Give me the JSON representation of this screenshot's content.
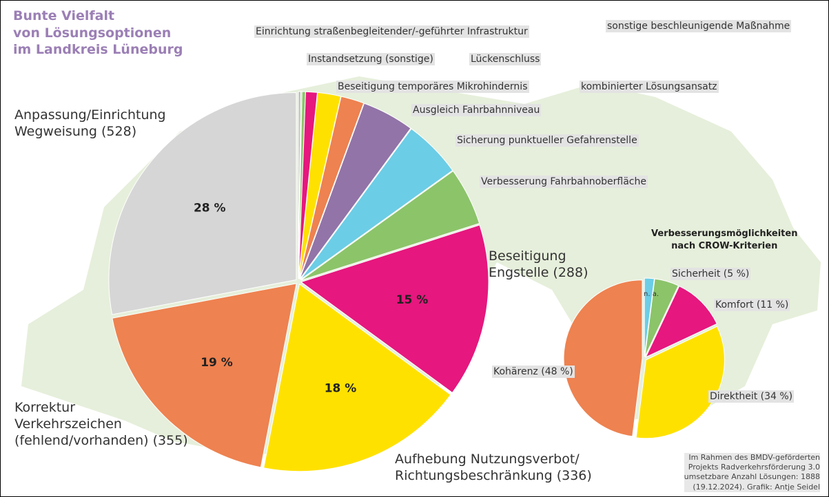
{
  "title": "Bunte Vielfalt\nvon Lösungsoptionen\nim Landkreis Lüneburg",
  "note": "Im Rahmen des BMDV-geförderten\nProjekts Radverkehrsförderung 3.0\numsetzbare Anzahl Lösungen: 1888\n(19.12.2024). Grafik: Antje Seidel",
  "chart_data": [
    {
      "type": "pie",
      "categories": [
        "sonstige beschleunigende Maßnahme",
        "kombinierter Lösungsansatz",
        "Einrichtung straßenbegleitender/-geführter Infrastruktur",
        "Lückenschluss",
        "Instandsetzung (sonstige)",
        "Beseitigung temporäres Mikrohindernis",
        "Ausgleich Fahrbahnniveau",
        "Sicherung punktueller Gefahrenstelle",
        "Verbesserung Fahrbahnoberfläche",
        "Beseitigung\nEngstelle (288)",
        "Aufhebung Nutzungsverbot/\nRichtungsbeschränkung (336)",
        "Korrektur\nVerkehrszeichen\n(fehlend/vorhanden) (355)",
        "Anpassung/Einrichtung\nWegweisung (528)"
      ],
      "values": [
        0.2,
        0.1,
        0.3,
        1,
        2,
        2,
        4.5,
        5,
        5,
        15,
        18,
        19,
        28
      ],
      "value_labels": [
        null,
        null,
        null,
        null,
        null,
        null,
        null,
        null,
        null,
        "15 %",
        "18 %",
        "19 %",
        "28 %"
      ],
      "colors": [
        "#b9b9b9",
        "#a8cf8a",
        "#8cc46a",
        "#e6177e",
        "#ffe100",
        "#ee8250",
        "#9274a8",
        "#6ccde6",
        "#8cc46a",
        "#e6177e",
        "#ffe100",
        "#ee8250",
        "#d6d6d6"
      ]
    },
    {
      "type": "pie",
      "title": "Verbesserungsmöglichkeiten\nnach CROW-Kriterien",
      "categories": [
        "n. a.",
        "Sicherheit (5 %)",
        "Komfort (11 %)",
        "Direktheit (34 %)",
        "Kohärenz (48 %)"
      ],
      "values": [
        2,
        5,
        11,
        34,
        48
      ],
      "colors": [
        "#6ccde6",
        "#8cc46a",
        "#e6177e",
        "#ffe100",
        "#ee8250"
      ]
    }
  ]
}
